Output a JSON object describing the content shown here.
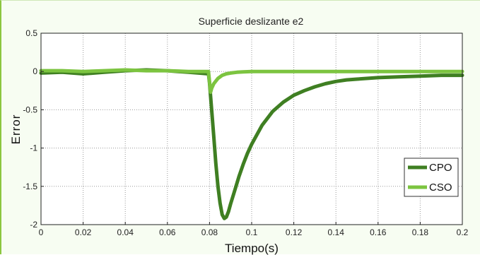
{
  "chart_data": {
    "type": "line",
    "title": "Superficie deslizante e2",
    "xlabel": "Tiempo(s)",
    "ylabel": "Error",
    "xlim": [
      0,
      0.2
    ],
    "ylim": [
      -2,
      0.5
    ],
    "grid": true,
    "legend_position": "bottom-right",
    "x_ticks": [
      "0",
      "0.02",
      "0.04",
      "0.06",
      "0.08",
      "0.1",
      "0.12",
      "0.14",
      "0.16",
      "0.18",
      "0.2"
    ],
    "y_ticks": [
      "0.5",
      "0",
      "-0.5",
      "-1",
      "-1.5",
      "-2"
    ],
    "series": [
      {
        "name": "CPO",
        "color": "#3f7f22",
        "x": [
          0,
          0.01,
          0.02,
          0.03,
          0.04,
          0.05,
          0.06,
          0.065,
          0.07,
          0.075,
          0.0795,
          0.08,
          0.081,
          0.082,
          0.083,
          0.084,
          0.085,
          0.086,
          0.087,
          0.088,
          0.089,
          0.09,
          0.092,
          0.094,
          0.096,
          0.098,
          0.1,
          0.105,
          0.11,
          0.115,
          0.12,
          0.125,
          0.13,
          0.135,
          0.14,
          0.145,
          0.15,
          0.16,
          0.17,
          0.18,
          0.19,
          0.2
        ],
        "y": [
          -0.02,
          -0.01,
          -0.03,
          -0.01,
          0.01,
          0.02,
          0.01,
          0.0,
          -0.01,
          -0.02,
          -0.03,
          -0.15,
          -0.5,
          -0.85,
          -1.2,
          -1.5,
          -1.72,
          -1.87,
          -1.92,
          -1.9,
          -1.83,
          -1.73,
          -1.55,
          -1.37,
          -1.21,
          -1.07,
          -0.95,
          -0.7,
          -0.52,
          -0.4,
          -0.31,
          -0.25,
          -0.2,
          -0.16,
          -0.13,
          -0.11,
          -0.1,
          -0.08,
          -0.07,
          -0.06,
          -0.05,
          -0.05
        ]
      },
      {
        "name": "CSO",
        "color": "#7cc440",
        "x": [
          0,
          0.01,
          0.02,
          0.03,
          0.04,
          0.05,
          0.06,
          0.07,
          0.0795,
          0.0805,
          0.081,
          0.082,
          0.084,
          0.086,
          0.088,
          0.09,
          0.093,
          0.096,
          0.1,
          0.11,
          0.12,
          0.14,
          0.16,
          0.18,
          0.2
        ],
        "y": [
          0.01,
          0.01,
          0.0,
          0.01,
          0.02,
          0.01,
          0.01,
          0.0,
          0.0,
          -0.27,
          -0.22,
          -0.16,
          -0.09,
          -0.05,
          -0.03,
          -0.02,
          -0.01,
          -0.005,
          0.0,
          0.0,
          0.0,
          0.0,
          0.0,
          0.0,
          0.0
        ]
      }
    ]
  }
}
